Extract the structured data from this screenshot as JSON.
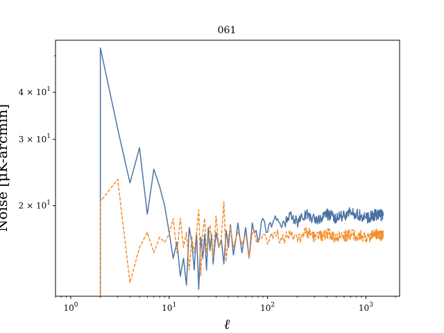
{
  "chart_data": {
    "type": "line",
    "title": "061",
    "xlabel": "ℓ",
    "ylabel": "Noise [μK-arcmin]",
    "xscale": "log",
    "yscale": "log",
    "xlim": [
      0.7,
      2200
    ],
    "ylim": [
      11.5,
      55
    ],
    "grid": false,
    "legend": "none",
    "xticks": [
      {
        "value": 1,
        "label": "10",
        "exp": "0"
      },
      {
        "value": 10,
        "label": "10",
        "exp": "1"
      },
      {
        "value": 100,
        "label": "10",
        "exp": "2"
      },
      {
        "value": 1000,
        "label": "10",
        "exp": "3"
      }
    ],
    "yticks": [
      {
        "value": 20,
        "label": "2 × 10",
        "exp": "1"
      },
      {
        "value": 30,
        "label": "3 × 10",
        "exp": "1"
      },
      {
        "value": 40,
        "label": "4 × 10",
        "exp": "1"
      }
    ],
    "series": [
      {
        "color": "#4c72a4",
        "style": "solid",
        "points": [
          [
            2,
            11.5
          ],
          [
            2,
            52.5
          ],
          [
            3,
            32
          ],
          [
            4,
            23
          ],
          [
            5,
            28.5
          ],
          [
            6,
            19
          ],
          [
            7,
            25
          ],
          [
            8,
            22.5
          ],
          [
            9,
            20
          ],
          [
            10,
            17
          ],
          [
            11,
            14.5
          ],
          [
            12,
            16
          ],
          [
            13,
            13
          ],
          [
            14,
            14.5
          ],
          [
            15,
            12.3
          ],
          [
            16,
            17.5
          ],
          [
            17,
            16
          ],
          [
            18,
            13.5
          ],
          [
            19,
            17
          ],
          [
            20,
            12
          ],
          [
            21,
            16.5
          ],
          [
            22,
            14.5
          ],
          [
            23,
            16.8
          ],
          [
            24,
            13.5
          ],
          [
            25,
            17.5
          ],
          [
            26,
            15.2
          ],
          [
            27,
            16.8
          ],
          [
            28,
            14
          ],
          [
            30,
            17
          ],
          [
            32,
            15.5
          ],
          [
            34,
            16.2
          ],
          [
            36,
            14
          ],
          [
            38,
            17.2
          ],
          [
            40,
            15.5
          ],
          [
            42,
            17.8
          ],
          [
            45,
            14.8
          ],
          [
            48,
            16.5
          ],
          [
            50,
            18
          ],
          [
            55,
            15
          ],
          [
            60,
            17.5
          ],
          [
            65,
            14.5
          ],
          [
            70,
            18
          ],
          [
            80,
            16
          ],
          [
            90,
            18.5
          ],
          [
            100,
            17
          ],
          [
            120,
            18.8
          ],
          [
            140,
            17.5
          ],
          [
            170,
            19
          ],
          [
            200,
            18
          ],
          [
            250,
            19.2
          ],
          [
            300,
            18.3
          ],
          [
            400,
            19
          ],
          [
            500,
            18.5
          ],
          [
            700,
            19.2
          ],
          [
            1000,
            18.6
          ],
          [
            1300,
            19
          ],
          [
            1500,
            18.8
          ]
        ]
      },
      {
        "color": "#f28e2b",
        "style": "dashed",
        "points": [
          [
            2,
            11.5
          ],
          [
            2,
            20.5
          ],
          [
            3,
            23.5
          ],
          [
            4,
            12.5
          ],
          [
            5,
            15.5
          ],
          [
            6,
            17
          ],
          [
            7,
            15
          ],
          [
            8,
            16.5
          ],
          [
            9,
            16
          ],
          [
            10,
            16.8
          ],
          [
            11,
            18.5
          ],
          [
            12,
            15
          ],
          [
            13,
            18.5
          ],
          [
            14,
            15.5
          ],
          [
            15,
            17
          ],
          [
            16,
            13.5
          ],
          [
            17,
            16.5
          ],
          [
            18,
            15
          ],
          [
            19,
            17
          ],
          [
            20,
            19.5
          ],
          [
            21,
            13
          ],
          [
            22,
            17
          ],
          [
            23,
            18.5
          ],
          [
            24,
            15
          ],
          [
            25,
            16
          ],
          [
            26,
            17.8
          ],
          [
            28,
            14.5
          ],
          [
            30,
            18.8
          ],
          [
            32,
            15.5
          ],
          [
            34,
            16.5
          ],
          [
            36,
            20.5
          ],
          [
            38,
            14.2
          ],
          [
            40,
            16.5
          ],
          [
            42,
            17.5
          ],
          [
            45,
            15.5
          ],
          [
            48,
            16.5
          ],
          [
            50,
            17
          ],
          [
            55,
            15.8
          ],
          [
            60,
            16.8
          ],
          [
            65,
            14.5
          ],
          [
            70,
            17
          ],
          [
            80,
            16
          ],
          [
            90,
            16.8
          ],
          [
            100,
            15.8
          ],
          [
            120,
            17
          ],
          [
            140,
            16.2
          ],
          [
            170,
            16.8
          ],
          [
            200,
            16.3
          ],
          [
            250,
            17
          ],
          [
            300,
            16.5
          ],
          [
            400,
            16.9
          ],
          [
            500,
            16.4
          ],
          [
            700,
            16.8
          ],
          [
            1000,
            16.5
          ],
          [
            1300,
            16.8
          ],
          [
            1500,
            16.6
          ]
        ]
      }
    ]
  }
}
